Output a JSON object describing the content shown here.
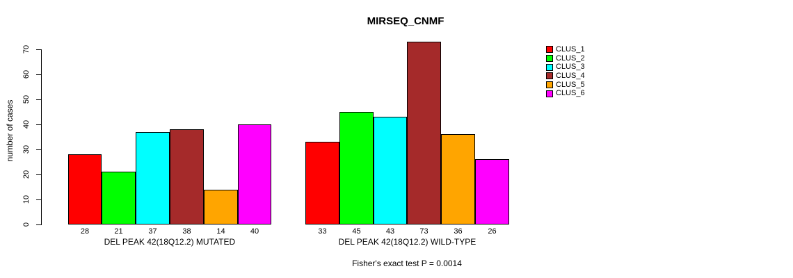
{
  "chart_data": {
    "type": "bar",
    "title": "MIRSEQ_CNMF",
    "ylabel": "number of cases",
    "xlabel": "",
    "annotation": "Fisher's exact test P = 0.0014",
    "categories": [
      "DEL PEAK 42(18Q12.2) MUTATED",
      "DEL PEAK 42(18Q12.2) WILD-TYPE"
    ],
    "series": [
      {
        "name": "CLUS_1",
        "color": "#FF0000",
        "values": [
          28,
          33
        ]
      },
      {
        "name": "CLUS_2",
        "color": "#00FF00",
        "values": [
          21,
          45
        ]
      },
      {
        "name": "CLUS_3",
        "color": "#00FFFF",
        "values": [
          37,
          43
        ]
      },
      {
        "name": "CLUS_4",
        "color": "#A52A2A",
        "values": [
          38,
          73
        ]
      },
      {
        "name": "CLUS_5",
        "color": "#FFA500",
        "values": [
          14,
          36
        ]
      },
      {
        "name": "CLUS_6",
        "color": "#FF00FF",
        "values": [
          40,
          26
        ]
      }
    ],
    "bar_value_labels_shown": true,
    "yticks": [
      0,
      10,
      20,
      30,
      40,
      50,
      60,
      70
    ],
    "ylim": [
      0,
      73
    ],
    "grid": false,
    "legend_position": "right",
    "axis_color": "#000000",
    "background_color": "#FFFFFF"
  }
}
